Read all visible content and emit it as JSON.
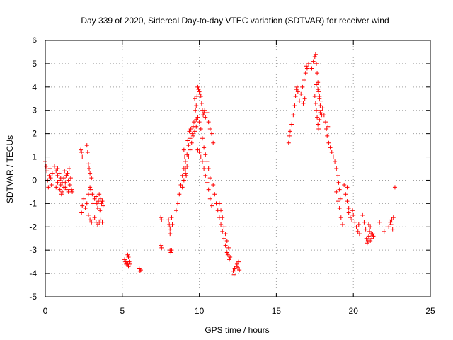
{
  "chart_data": {
    "type": "scatter",
    "title": "Day 339 of 2020, Sidereal Day-to-day VTEC variation (SDTVAR) for receiver wind",
    "xlabel": "GPS time / hours",
    "ylabel": "SDTVAR / TECUs",
    "xlim": [
      0,
      25
    ],
    "ylim": [
      -5,
      6
    ],
    "xticks": [
      "0",
      "5",
      "10",
      "15",
      "20",
      "25"
    ],
    "yticks": [
      "-5",
      "-4",
      "-3",
      "-2",
      "-1",
      "0",
      "1",
      "2",
      "3",
      "4",
      "5",
      "6"
    ],
    "grid": true,
    "marker": "+",
    "color": "#ff0000",
    "series": [
      {
        "name": "SDTVAR",
        "points": [
          [
            0.0,
            0.8
          ],
          [
            0.05,
            0.6
          ],
          [
            0.1,
            0.4
          ],
          [
            0.15,
            0.0
          ],
          [
            0.2,
            -0.3
          ],
          [
            0.25,
            0.2
          ],
          [
            0.3,
            0.5
          ],
          [
            0.35,
            0.1
          ],
          [
            0.4,
            -0.2
          ],
          [
            0.45,
            0.3
          ],
          [
            0.6,
            0.6
          ],
          [
            0.7,
            0.4
          ],
          [
            0.8,
            0.2
          ],
          [
            0.9,
            0.0
          ],
          [
            1.0,
            -0.2
          ],
          [
            1.1,
            -0.5
          ],
          [
            1.2,
            0.1
          ],
          [
            1.3,
            -0.3
          ],
          [
            1.4,
            -0.4
          ],
          [
            1.5,
            -0.5
          ],
          [
            0.8,
            0.5
          ],
          [
            0.9,
            0.3
          ],
          [
            1.0,
            0.1
          ],
          [
            1.1,
            -0.1
          ],
          [
            1.2,
            -0.3
          ],
          [
            1.3,
            -0.1
          ],
          [
            1.4,
            0.2
          ],
          [
            1.5,
            0.0
          ],
          [
            1.6,
            -0.2
          ],
          [
            1.7,
            -0.4
          ],
          [
            0.7,
            -0.3
          ],
          [
            0.8,
            -0.1
          ],
          [
            0.95,
            -0.4
          ],
          [
            1.05,
            -0.6
          ],
          [
            1.25,
            0.4
          ],
          [
            1.35,
            0.2
          ],
          [
            1.45,
            0.3
          ],
          [
            1.55,
            0.5
          ],
          [
            1.65,
            0.1
          ],
          [
            1.75,
            -0.5
          ],
          [
            2.3,
            1.3
          ],
          [
            2.35,
            1.2
          ],
          [
            2.4,
            1.0
          ],
          [
            2.35,
            -1.4
          ],
          [
            2.4,
            -1.1
          ],
          [
            2.5,
            -0.8
          ],
          [
            2.6,
            -1.2
          ],
          [
            2.7,
            -1.0
          ],
          [
            2.8,
            -0.6
          ],
          [
            2.9,
            -0.3
          ],
          [
            2.7,
            1.5
          ],
          [
            2.75,
            1.2
          ],
          [
            2.8,
            0.7
          ],
          [
            2.85,
            0.5
          ],
          [
            2.9,
            0.3
          ],
          [
            2.95,
            -0.4
          ],
          [
            3.0,
            0.1
          ],
          [
            3.05,
            -0.6
          ],
          [
            3.1,
            -1.0
          ],
          [
            3.2,
            -0.8
          ],
          [
            2.8,
            -1.5
          ],
          [
            2.9,
            -1.7
          ],
          [
            3.0,
            -1.8
          ],
          [
            3.1,
            -1.7
          ],
          [
            3.2,
            -1.6
          ],
          [
            3.3,
            -1.8
          ],
          [
            3.4,
            -1.9
          ],
          [
            3.5,
            -1.8
          ],
          [
            3.6,
            -1.7
          ],
          [
            3.7,
            -1.8
          ],
          [
            3.3,
            -0.7
          ],
          [
            3.35,
            -1.0
          ],
          [
            3.4,
            -1.2
          ],
          [
            3.45,
            -0.9
          ],
          [
            3.5,
            -0.6
          ],
          [
            3.55,
            -1.3
          ],
          [
            3.6,
            -0.8
          ],
          [
            3.65,
            -1.0
          ],
          [
            3.7,
            -0.9
          ],
          [
            3.75,
            -1.1
          ],
          [
            5.15,
            -3.4
          ],
          [
            5.2,
            -3.5
          ],
          [
            5.25,
            -3.6
          ],
          [
            5.3,
            -3.5
          ],
          [
            5.35,
            -3.6
          ],
          [
            5.4,
            -3.7
          ],
          [
            5.35,
            -3.2
          ],
          [
            5.4,
            -3.3
          ],
          [
            5.45,
            -3.5
          ],
          [
            5.5,
            -3.6
          ],
          [
            6.1,
            -3.8
          ],
          [
            6.15,
            -3.9
          ],
          [
            6.2,
            -3.85
          ],
          [
            7.5,
            -1.6
          ],
          [
            7.55,
            -1.7
          ],
          [
            7.5,
            -2.8
          ],
          [
            7.55,
            -2.9
          ],
          [
            8.0,
            -1.7
          ],
          [
            8.05,
            -1.9
          ],
          [
            8.1,
            -2.1
          ],
          [
            8.1,
            -2.3
          ],
          [
            8.1,
            -3.0
          ],
          [
            8.15,
            -3.1
          ],
          [
            8.2,
            -3.0
          ],
          [
            8.2,
            -1.6
          ],
          [
            8.25,
            -1.9
          ],
          [
            8.15,
            -2.0
          ],
          [
            8.5,
            -1.3
          ],
          [
            8.6,
            -1.0
          ],
          [
            8.7,
            -0.6
          ],
          [
            8.8,
            -0.2
          ],
          [
            8.9,
            0.2
          ],
          [
            9.0,
            0.5
          ],
          [
            9.1,
            0.8
          ],
          [
            9.2,
            1.1
          ],
          [
            9.3,
            1.5
          ],
          [
            9.4,
            1.8
          ],
          [
            8.9,
            -0.3
          ],
          [
            9.0,
            0.0
          ],
          [
            9.1,
            0.3
          ],
          [
            9.2,
            0.6
          ],
          [
            9.3,
            1.0
          ],
          [
            9.4,
            1.3
          ],
          [
            9.5,
            1.6
          ],
          [
            9.6,
            1.9
          ],
          [
            9.7,
            2.1
          ],
          [
            9.8,
            2.3
          ],
          [
            9.0,
            1.3
          ],
          [
            9.05,
            1.0
          ],
          [
            9.1,
            0.5
          ],
          [
            9.15,
            0.2
          ],
          [
            9.25,
            1.7
          ],
          [
            9.35,
            2.1
          ],
          [
            9.45,
            2.2
          ],
          [
            9.55,
            2.0
          ],
          [
            9.6,
            2.3
          ],
          [
            9.65,
            2.5
          ],
          [
            9.7,
            3.5
          ],
          [
            9.75,
            3.0
          ],
          [
            9.8,
            3.2
          ],
          [
            9.85,
            3.6
          ],
          [
            9.9,
            4.0
          ],
          [
            9.95,
            3.9
          ],
          [
            10.0,
            3.8
          ],
          [
            10.05,
            3.7
          ],
          [
            10.1,
            3.6
          ],
          [
            10.15,
            3.3
          ],
          [
            10.2,
            3.0
          ],
          [
            10.25,
            2.8
          ],
          [
            10.3,
            2.9
          ],
          [
            10.35,
            3.0
          ],
          [
            10.4,
            2.7
          ],
          [
            10.5,
            2.9
          ],
          [
            10.6,
            2.5
          ],
          [
            10.7,
            2.2
          ],
          [
            10.8,
            2.0
          ],
          [
            10.9,
            1.6
          ],
          [
            9.9,
            1.3
          ],
          [
            10.0,
            1.2
          ],
          [
            10.1,
            1.0
          ],
          [
            10.2,
            0.8
          ],
          [
            10.3,
            0.5
          ],
          [
            10.4,
            0.2
          ],
          [
            10.5,
            -0.1
          ],
          [
            10.6,
            -0.4
          ],
          [
            10.7,
            -0.8
          ],
          [
            10.8,
            -1.1
          ],
          [
            9.8,
            2.6
          ],
          [
            9.9,
            2.7
          ],
          [
            10.0,
            2.5
          ],
          [
            10.1,
            2.2
          ],
          [
            10.2,
            1.8
          ],
          [
            10.3,
            1.4
          ],
          [
            10.4,
            1.1
          ],
          [
            10.5,
            0.8
          ],
          [
            10.6,
            0.5
          ],
          [
            10.7,
            0.1
          ],
          [
            10.9,
            -0.2
          ],
          [
            11.0,
            -0.6
          ],
          [
            11.1,
            -1.0
          ],
          [
            11.2,
            -1.3
          ],
          [
            11.3,
            -1.6
          ],
          [
            11.4,
            -1.9
          ],
          [
            11.5,
            -2.2
          ],
          [
            11.6,
            -2.5
          ],
          [
            11.7,
            -2.8
          ],
          [
            11.8,
            -3.1
          ],
          [
            11.3,
            -1.0
          ],
          [
            11.4,
            -1.3
          ],
          [
            11.5,
            -1.6
          ],
          [
            11.6,
            -2.0
          ],
          [
            11.7,
            -2.3
          ],
          [
            11.8,
            -2.6
          ],
          [
            11.9,
            -2.9
          ],
          [
            12.0,
            -3.3
          ],
          [
            11.95,
            -3.4
          ],
          [
            11.85,
            -3.2
          ],
          [
            12.2,
            -3.9
          ],
          [
            12.25,
            -4.05
          ],
          [
            12.3,
            -3.8
          ],
          [
            12.4,
            -3.7
          ],
          [
            12.5,
            -3.75
          ],
          [
            12.6,
            -3.85
          ],
          [
            12.55,
            -3.5
          ],
          [
            12.45,
            -3.6
          ],
          [
            15.8,
            1.6
          ],
          [
            15.85,
            1.9
          ],
          [
            15.9,
            2.1
          ],
          [
            16.0,
            2.4
          ],
          [
            16.1,
            2.8
          ],
          [
            16.2,
            3.2
          ],
          [
            16.25,
            3.6
          ],
          [
            16.3,
            3.9
          ],
          [
            16.35,
            4.0
          ],
          [
            16.4,
            3.8
          ],
          [
            16.5,
            3.4
          ],
          [
            16.6,
            3.7
          ],
          [
            16.7,
            4.0
          ],
          [
            16.8,
            4.3
          ],
          [
            16.9,
            4.6
          ],
          [
            17.0,
            4.8
          ],
          [
            17.1,
            5.0
          ],
          [
            16.95,
            4.9
          ],
          [
            16.85,
            3.5
          ],
          [
            16.75,
            3.3
          ],
          [
            17.3,
            4.8
          ],
          [
            17.4,
            5.1
          ],
          [
            17.5,
            5.3
          ],
          [
            17.55,
            5.4
          ],
          [
            17.6,
            5.0
          ],
          [
            17.65,
            4.6
          ],
          [
            17.7,
            4.2
          ],
          [
            17.75,
            3.8
          ],
          [
            17.8,
            3.5
          ],
          [
            17.85,
            3.2
          ],
          [
            17.5,
            3.6
          ],
          [
            17.55,
            3.3
          ],
          [
            17.6,
            3.0
          ],
          [
            17.65,
            2.7
          ],
          [
            17.7,
            2.4
          ],
          [
            17.75,
            2.2
          ],
          [
            17.8,
            2.6
          ],
          [
            17.85,
            2.9
          ],
          [
            17.9,
            3.0
          ],
          [
            17.95,
            2.8
          ],
          [
            17.6,
            4.1
          ],
          [
            17.7,
            3.9
          ],
          [
            17.8,
            3.6
          ],
          [
            17.9,
            3.4
          ],
          [
            18.0,
            3.1
          ],
          [
            18.1,
            2.8
          ],
          [
            18.2,
            2.5
          ],
          [
            18.25,
            2.2
          ],
          [
            18.3,
            1.9
          ],
          [
            18.35,
            2.3
          ],
          [
            18.4,
            1.6
          ],
          [
            18.5,
            1.4
          ],
          [
            18.6,
            1.2
          ],
          [
            18.7,
            1.0
          ],
          [
            18.8,
            0.8
          ],
          [
            18.9,
            0.5
          ],
          [
            19.0,
            0.2
          ],
          [
            19.05,
            -0.1
          ],
          [
            19.1,
            -0.4
          ],
          [
            19.15,
            -0.8
          ],
          [
            18.9,
            -0.5
          ],
          [
            19.0,
            -0.9
          ],
          [
            19.1,
            -1.2
          ],
          [
            19.2,
            -1.6
          ],
          [
            19.3,
            -1.9
          ],
          [
            19.4,
            -0.2
          ],
          [
            19.5,
            -0.6
          ],
          [
            19.6,
            -0.9
          ],
          [
            19.7,
            -1.2
          ],
          [
            19.8,
            -1.6
          ],
          [
            19.6,
            -0.3
          ],
          [
            19.7,
            -1.4
          ],
          [
            19.9,
            -1.7
          ],
          [
            19.95,
            -1.3
          ],
          [
            20.0,
            -1.5
          ],
          [
            20.1,
            -1.8
          ],
          [
            20.2,
            -2.0
          ],
          [
            20.3,
            -2.2
          ],
          [
            20.35,
            -1.9
          ],
          [
            20.4,
            -2.3
          ],
          [
            20.6,
            -1.5
          ],
          [
            20.7,
            -1.8
          ],
          [
            20.8,
            -2.1
          ],
          [
            20.85,
            -2.5
          ],
          [
            20.9,
            -2.7
          ],
          [
            20.95,
            -2.6
          ],
          [
            21.0,
            -2.4
          ],
          [
            21.05,
            -2.2
          ],
          [
            21.1,
            -2.0
          ],
          [
            21.15,
            -2.3
          ],
          [
            21.0,
            -1.9
          ],
          [
            21.1,
            -2.6
          ],
          [
            21.2,
            -2.5
          ],
          [
            21.25,
            -2.3
          ],
          [
            21.3,
            -2.4
          ],
          [
            21.7,
            -1.8
          ],
          [
            22.0,
            -2.2
          ],
          [
            22.3,
            -2.0
          ],
          [
            22.4,
            -1.8
          ],
          [
            22.5,
            -1.7
          ],
          [
            22.6,
            -1.6
          ],
          [
            22.7,
            -0.3
          ],
          [
            22.55,
            -2.1
          ],
          [
            22.45,
            -1.9
          ]
        ]
      }
    ]
  }
}
